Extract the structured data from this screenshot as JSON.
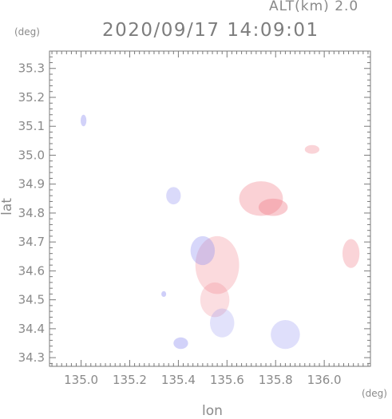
{
  "header": {
    "altitude_label": "ALT(km) 2.0",
    "timestamp": "2020/09/17 14:09:01"
  },
  "axes": {
    "ylabel": "lat",
    "yunit": "(deg)",
    "xlabel": "lon",
    "xunit": "(deg)"
  },
  "chart_data": {
    "type": "heatmap",
    "title": "2020/09/17 14:09:01",
    "subtitle": "ALT(km) 2.0",
    "xlabel": "lon",
    "ylabel": "lat",
    "xlim": [
      134.87,
      136.19
    ],
    "ylim": [
      34.27,
      35.36
    ],
    "x_ticks": [
      135.0,
      135.2,
      135.4,
      135.6,
      135.8,
      136.0
    ],
    "x_tick_labels": [
      "135.0",
      "135.2",
      "135.4",
      "135.6",
      "135.8",
      "136.0"
    ],
    "y_ticks": [
      34.3,
      34.4,
      34.5,
      34.6,
      34.7,
      34.8,
      34.9,
      35.0,
      35.1,
      35.2,
      35.3
    ],
    "y_tick_labels": [
      "34.3",
      "34.4",
      "34.5",
      "34.6",
      "34.7",
      "34.8",
      "34.9",
      "35.0",
      "35.1",
      "35.2",
      "35.3"
    ],
    "grid": false,
    "colors": {
      "positive": "#f07a86",
      "negative": "#8c8cf0"
    },
    "patches": [
      {
        "lon": 135.01,
        "lat": 35.12,
        "rx": 0.012,
        "ry": 0.02,
        "value": -0.6
      },
      {
        "lon": 135.56,
        "lat": 34.62,
        "rx": 0.09,
        "ry": 0.1,
        "value": 0.3
      },
      {
        "lon": 135.5,
        "lat": 34.67,
        "rx": 0.05,
        "ry": 0.05,
        "value": -0.5
      },
      {
        "lon": 135.55,
        "lat": 34.5,
        "rx": 0.06,
        "ry": 0.06,
        "value": 0.2
      },
      {
        "lon": 135.58,
        "lat": 34.42,
        "rx": 0.05,
        "ry": 0.05,
        "value": -0.2
      },
      {
        "lon": 135.84,
        "lat": 34.38,
        "rx": 0.06,
        "ry": 0.05,
        "value": -0.3
      },
      {
        "lon": 135.74,
        "lat": 34.85,
        "rx": 0.09,
        "ry": 0.06,
        "value": 0.5
      },
      {
        "lon": 135.79,
        "lat": 34.82,
        "rx": 0.06,
        "ry": 0.03,
        "value": 0.6
      },
      {
        "lon": 135.95,
        "lat": 35.02,
        "rx": 0.03,
        "ry": 0.015,
        "value": 0.4
      },
      {
        "lon": 136.11,
        "lat": 34.66,
        "rx": 0.035,
        "ry": 0.05,
        "value": 0.4
      },
      {
        "lon": 135.38,
        "lat": 34.86,
        "rx": 0.03,
        "ry": 0.03,
        "value": -0.4
      },
      {
        "lon": 135.34,
        "lat": 34.52,
        "rx": 0.01,
        "ry": 0.01,
        "value": -0.7
      },
      {
        "lon": 135.41,
        "lat": 34.35,
        "rx": 0.03,
        "ry": 0.02,
        "value": -0.6
      }
    ]
  }
}
